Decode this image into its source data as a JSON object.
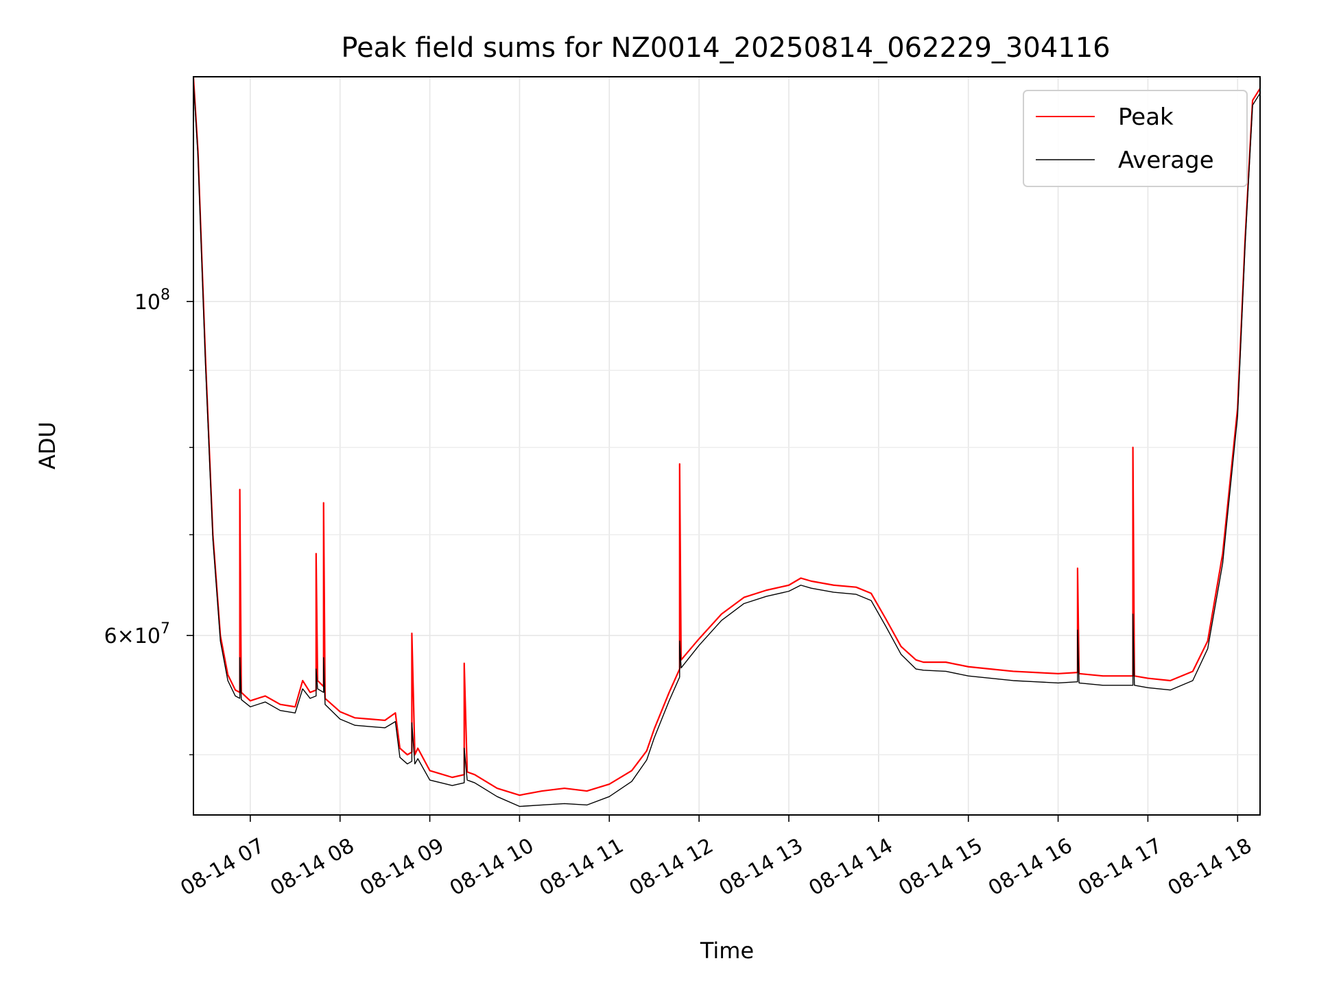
{
  "chart_data": {
    "type": "line",
    "title": "Peak field sums for NZ0014_20250814_062229_304116",
    "xlabel": "Time",
    "ylabel": "ADU",
    "x_range": [
      "2025-08-14T06:22",
      "2025-08-14T18:15"
    ],
    "y_scale": "log",
    "ylim": [
      45600000,
      141000000
    ],
    "grid": true,
    "legend_position": "top-right",
    "x_ticks": [
      {
        "time": "2025-08-14T07:00",
        "label": "08-14 07"
      },
      {
        "time": "2025-08-14T08:00",
        "label": "08-14 08"
      },
      {
        "time": "2025-08-14T09:00",
        "label": "08-14 09"
      },
      {
        "time": "2025-08-14T10:00",
        "label": "08-14 10"
      },
      {
        "time": "2025-08-14T11:00",
        "label": "08-14 11"
      },
      {
        "time": "2025-08-14T12:00",
        "label": "08-14 12"
      },
      {
        "time": "2025-08-14T13:00",
        "label": "08-14 13"
      },
      {
        "time": "2025-08-14T14:00",
        "label": "08-14 14"
      },
      {
        "time": "2025-08-14T15:00",
        "label": "08-14 15"
      },
      {
        "time": "2025-08-14T16:00",
        "label": "08-14 16"
      },
      {
        "time": "2025-08-14T17:00",
        "label": "08-14 17"
      },
      {
        "time": "2025-08-14T18:00",
        "label": "08-14 18"
      }
    ],
    "y_major_ticks": [
      {
        "value": 60000000,
        "mantissa": "6×10",
        "exponent": "7"
      },
      {
        "value": 100000000,
        "mantissa": "10",
        "exponent": "8"
      }
    ],
    "y_minor_ticks": [
      50000000,
      70000000,
      80000000,
      90000000
    ],
    "series": [
      {
        "name": "Peak",
        "color": "#ff0000",
        "points": [
          [
            "2025-08-14T06:22",
            141000000
          ],
          [
            "2025-08-14T06:25",
            126000000
          ],
          [
            "2025-08-14T06:30",
            92000000
          ],
          [
            "2025-08-14T06:35",
            70000000
          ],
          [
            "2025-08-14T06:40",
            60000000
          ],
          [
            "2025-08-14T06:45",
            56500000
          ],
          [
            "2025-08-14T06:50",
            55200000
          ],
          [
            "2025-08-14T06:53",
            55000000
          ],
          [
            "2025-08-14T06:53",
            75000000
          ],
          [
            "2025-08-14T06:54",
            55000000
          ],
          [
            "2025-08-14T07:00",
            54300000
          ],
          [
            "2025-08-14T07:10",
            54700000
          ],
          [
            "2025-08-14T07:20",
            54000000
          ],
          [
            "2025-08-14T07:30",
            53800000
          ],
          [
            "2025-08-14T07:35",
            56000000
          ],
          [
            "2025-08-14T07:40",
            55000000
          ],
          [
            "2025-08-14T07:44",
            55200000
          ],
          [
            "2025-08-14T07:44",
            68000000
          ],
          [
            "2025-08-14T07:45",
            56000000
          ],
          [
            "2025-08-14T07:49",
            55500000
          ],
          [
            "2025-08-14T07:49",
            73500000
          ],
          [
            "2025-08-14T07:50",
            54500000
          ],
          [
            "2025-08-14T08:00",
            53400000
          ],
          [
            "2025-08-14T08:10",
            52900000
          ],
          [
            "2025-08-14T08:20",
            52800000
          ],
          [
            "2025-08-14T08:30",
            52700000
          ],
          [
            "2025-08-14T08:37",
            53300000
          ],
          [
            "2025-08-14T08:40",
            50500000
          ],
          [
            "2025-08-14T08:45",
            50000000
          ],
          [
            "2025-08-14T08:48",
            50200000
          ],
          [
            "2025-08-14T08:48",
            60200000
          ],
          [
            "2025-08-14T08:50",
            50000000
          ],
          [
            "2025-08-14T08:52",
            50500000
          ],
          [
            "2025-08-14T09:00",
            48800000
          ],
          [
            "2025-08-14T09:15",
            48300000
          ],
          [
            "2025-08-14T09:23",
            48500000
          ],
          [
            "2025-08-14T09:23",
            57500000
          ],
          [
            "2025-08-14T09:25",
            48700000
          ],
          [
            "2025-08-14T09:30",
            48500000
          ],
          [
            "2025-08-14T09:45",
            47500000
          ],
          [
            "2025-08-14T10:00",
            47000000
          ],
          [
            "2025-08-14T10:15",
            47300000
          ],
          [
            "2025-08-14T10:30",
            47500000
          ],
          [
            "2025-08-14T10:45",
            47300000
          ],
          [
            "2025-08-14T11:00",
            47800000
          ],
          [
            "2025-08-14T11:15",
            48800000
          ],
          [
            "2025-08-14T11:25",
            50300000
          ],
          [
            "2025-08-14T11:30",
            52000000
          ],
          [
            "2025-08-14T11:40",
            55000000
          ],
          [
            "2025-08-14T11:47",
            57000000
          ],
          [
            "2025-08-14T11:47",
            78000000
          ],
          [
            "2025-08-14T11:48",
            57800000
          ],
          [
            "2025-08-14T12:00",
            59700000
          ],
          [
            "2025-08-14T12:15",
            62000000
          ],
          [
            "2025-08-14T12:30",
            63600000
          ],
          [
            "2025-08-14T12:45",
            64300000
          ],
          [
            "2025-08-14T13:00",
            64800000
          ],
          [
            "2025-08-14T13:08",
            65500000
          ],
          [
            "2025-08-14T13:15",
            65200000
          ],
          [
            "2025-08-14T13:30",
            64800000
          ],
          [
            "2025-08-14T13:45",
            64600000
          ],
          [
            "2025-08-14T13:55",
            64000000
          ],
          [
            "2025-08-14T14:05",
            61500000
          ],
          [
            "2025-08-14T14:15",
            59000000
          ],
          [
            "2025-08-14T14:25",
            57800000
          ],
          [
            "2025-08-14T14:30",
            57600000
          ],
          [
            "2025-08-14T14:45",
            57600000
          ],
          [
            "2025-08-14T15:00",
            57200000
          ],
          [
            "2025-08-14T15:15",
            57000000
          ],
          [
            "2025-08-14T15:30",
            56800000
          ],
          [
            "2025-08-14T15:45",
            56700000
          ],
          [
            "2025-08-14T16:00",
            56600000
          ],
          [
            "2025-08-14T16:13",
            56700000
          ],
          [
            "2025-08-14T16:13",
            66500000
          ],
          [
            "2025-08-14T16:14",
            56600000
          ],
          [
            "2025-08-14T16:30",
            56400000
          ],
          [
            "2025-08-14T16:50",
            56400000
          ],
          [
            "2025-08-14T16:50",
            80000000
          ],
          [
            "2025-08-14T16:51",
            56400000
          ],
          [
            "2025-08-14T17:00",
            56200000
          ],
          [
            "2025-08-14T17:15",
            56000000
          ],
          [
            "2025-08-14T17:30",
            56800000
          ],
          [
            "2025-08-14T17:40",
            59500000
          ],
          [
            "2025-08-14T17:50",
            68000000
          ],
          [
            "2025-08-14T18:00",
            85000000
          ],
          [
            "2025-08-14T18:05",
            110000000
          ],
          [
            "2025-08-14T18:10",
            136000000
          ],
          [
            "2025-08-14T18:15",
            138500000
          ]
        ]
      },
      {
        "name": "Average",
        "color": "#000000",
        "points": [
          [
            "2025-08-14T06:22",
            140000000
          ],
          [
            "2025-08-14T06:25",
            125000000
          ],
          [
            "2025-08-14T06:30",
            91000000
          ],
          [
            "2025-08-14T06:35",
            69500000
          ],
          [
            "2025-08-14T06:40",
            59500000
          ],
          [
            "2025-08-14T06:45",
            56000000
          ],
          [
            "2025-08-14T06:50",
            54700000
          ],
          [
            "2025-08-14T06:53",
            54500000
          ],
          [
            "2025-08-14T06:53",
            58000000
          ],
          [
            "2025-08-14T06:54",
            54400000
          ],
          [
            "2025-08-14T07:00",
            53800000
          ],
          [
            "2025-08-14T07:10",
            54200000
          ],
          [
            "2025-08-14T07:20",
            53500000
          ],
          [
            "2025-08-14T07:30",
            53300000
          ],
          [
            "2025-08-14T07:35",
            55300000
          ],
          [
            "2025-08-14T07:40",
            54500000
          ],
          [
            "2025-08-14T07:44",
            54700000
          ],
          [
            "2025-08-14T07:44",
            57000000
          ],
          [
            "2025-08-14T07:45",
            55300000
          ],
          [
            "2025-08-14T07:49",
            55000000
          ],
          [
            "2025-08-14T07:49",
            58000000
          ],
          [
            "2025-08-14T07:50",
            54000000
          ],
          [
            "2025-08-14T08:00",
            52800000
          ],
          [
            "2025-08-14T08:10",
            52300000
          ],
          [
            "2025-08-14T08:20",
            52200000
          ],
          [
            "2025-08-14T08:30",
            52100000
          ],
          [
            "2025-08-14T08:37",
            52600000
          ],
          [
            "2025-08-14T08:40",
            49800000
          ],
          [
            "2025-08-14T08:45",
            49300000
          ],
          [
            "2025-08-14T08:48",
            49500000
          ],
          [
            "2025-08-14T08:48",
            52500000
          ],
          [
            "2025-08-14T08:50",
            49300000
          ],
          [
            "2025-08-14T08:52",
            49700000
          ],
          [
            "2025-08-14T09:00",
            48100000
          ],
          [
            "2025-08-14T09:15",
            47700000
          ],
          [
            "2025-08-14T09:23",
            47900000
          ],
          [
            "2025-08-14T09:23",
            50500000
          ],
          [
            "2025-08-14T09:25",
            48100000
          ],
          [
            "2025-08-14T09:30",
            47900000
          ],
          [
            "2025-08-14T09:45",
            46900000
          ],
          [
            "2025-08-14T10:00",
            46200000
          ],
          [
            "2025-08-14T10:15",
            46300000
          ],
          [
            "2025-08-14T10:30",
            46400000
          ],
          [
            "2025-08-14T10:45",
            46300000
          ],
          [
            "2025-08-14T11:00",
            46900000
          ],
          [
            "2025-08-14T11:15",
            48000000
          ],
          [
            "2025-08-14T11:25",
            49600000
          ],
          [
            "2025-08-14T11:30",
            51300000
          ],
          [
            "2025-08-14T11:40",
            54300000
          ],
          [
            "2025-08-14T11:47",
            56300000
          ],
          [
            "2025-08-14T11:47",
            59500000
          ],
          [
            "2025-08-14T11:48",
            57100000
          ],
          [
            "2025-08-14T12:00",
            59100000
          ],
          [
            "2025-08-14T12:15",
            61400000
          ],
          [
            "2025-08-14T12:30",
            63000000
          ],
          [
            "2025-08-14T12:45",
            63700000
          ],
          [
            "2025-08-14T13:00",
            64200000
          ],
          [
            "2025-08-14T13:08",
            64800000
          ],
          [
            "2025-08-14T13:15",
            64500000
          ],
          [
            "2025-08-14T13:30",
            64100000
          ],
          [
            "2025-08-14T13:45",
            63900000
          ],
          [
            "2025-08-14T13:55",
            63300000
          ],
          [
            "2025-08-14T14:05",
            60800000
          ],
          [
            "2025-08-14T14:15",
            58300000
          ],
          [
            "2025-08-14T14:25",
            57000000
          ],
          [
            "2025-08-14T14:30",
            56900000
          ],
          [
            "2025-08-14T14:45",
            56800000
          ],
          [
            "2025-08-14T15:00",
            56400000
          ],
          [
            "2025-08-14T15:15",
            56200000
          ],
          [
            "2025-08-14T15:30",
            56000000
          ],
          [
            "2025-08-14T15:45",
            55900000
          ],
          [
            "2025-08-14T16:00",
            55800000
          ],
          [
            "2025-08-14T16:13",
            55900000
          ],
          [
            "2025-08-14T16:13",
            60500000
          ],
          [
            "2025-08-14T16:14",
            55800000
          ],
          [
            "2025-08-14T16:30",
            55600000
          ],
          [
            "2025-08-14T16:50",
            55600000
          ],
          [
            "2025-08-14T16:50",
            62000000
          ],
          [
            "2025-08-14T16:51",
            55600000
          ],
          [
            "2025-08-14T17:00",
            55400000
          ],
          [
            "2025-08-14T17:15",
            55200000
          ],
          [
            "2025-08-14T17:30",
            56000000
          ],
          [
            "2025-08-14T17:40",
            58800000
          ],
          [
            "2025-08-14T17:50",
            67000000
          ],
          [
            "2025-08-14T18:00",
            84000000
          ],
          [
            "2025-08-14T18:05",
            109000000
          ],
          [
            "2025-08-14T18:10",
            135000000
          ],
          [
            "2025-08-14T18:15",
            137500000
          ]
        ]
      }
    ]
  }
}
